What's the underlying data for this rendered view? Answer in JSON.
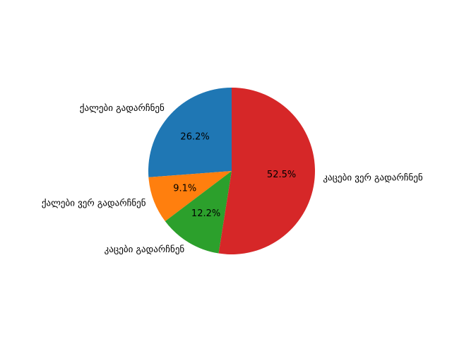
{
  "chart_data": {
    "type": "pie",
    "title": "",
    "categories": [
      "ქალები გადარჩნენ",
      "ქალები ვერ გადარჩნენ",
      "კაცები გადარჩნენ",
      "კაცები ვერ გადარჩნენ"
    ],
    "values": [
      26.2,
      9.1,
      12.2,
      52.5
    ],
    "value_labels": [
      "26.2%",
      "9.1%",
      "12.2%",
      "52.5%"
    ],
    "colors": [
      "#1f77b4",
      "#ff7f0e",
      "#2ca02c",
      "#d62728"
    ],
    "start_angle_deg": 90,
    "direction": "counterclockwise",
    "legend": "none"
  }
}
